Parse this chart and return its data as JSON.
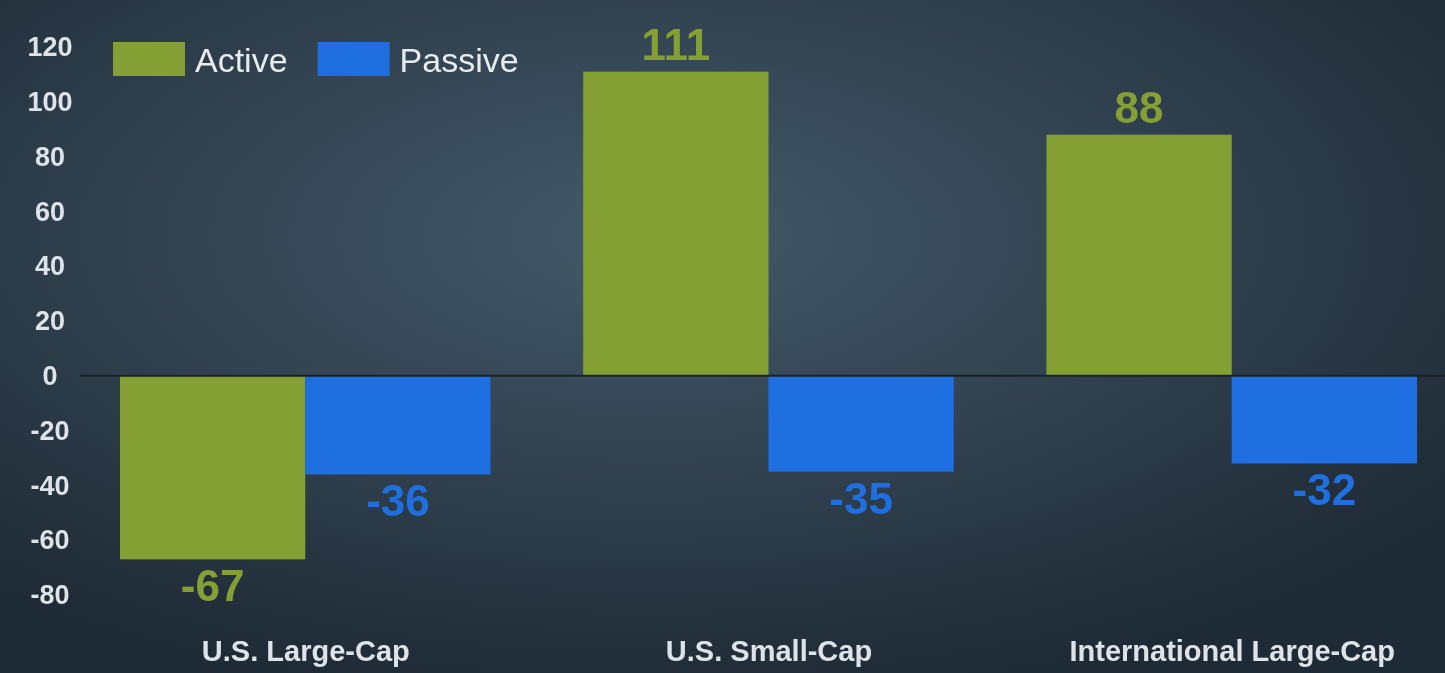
{
  "chart_data": {
    "type": "bar",
    "categories": [
      "U.S. Large-Cap",
      "U.S. Small-Cap",
      "International Large-Cap"
    ],
    "series": [
      {
        "name": "Active",
        "color": "#84a034",
        "values": [
          -67,
          111,
          88
        ]
      },
      {
        "name": "Passive",
        "color": "#1f6fe0",
        "values": [
          -36,
          -35,
          -32
        ]
      }
    ],
    "ylim": [
      -80,
      120
    ],
    "yticks": [
      -80,
      -60,
      -40,
      -20,
      0,
      20,
      40,
      60,
      80,
      100,
      120
    ],
    "data_labels": true,
    "legend": "top left"
  }
}
